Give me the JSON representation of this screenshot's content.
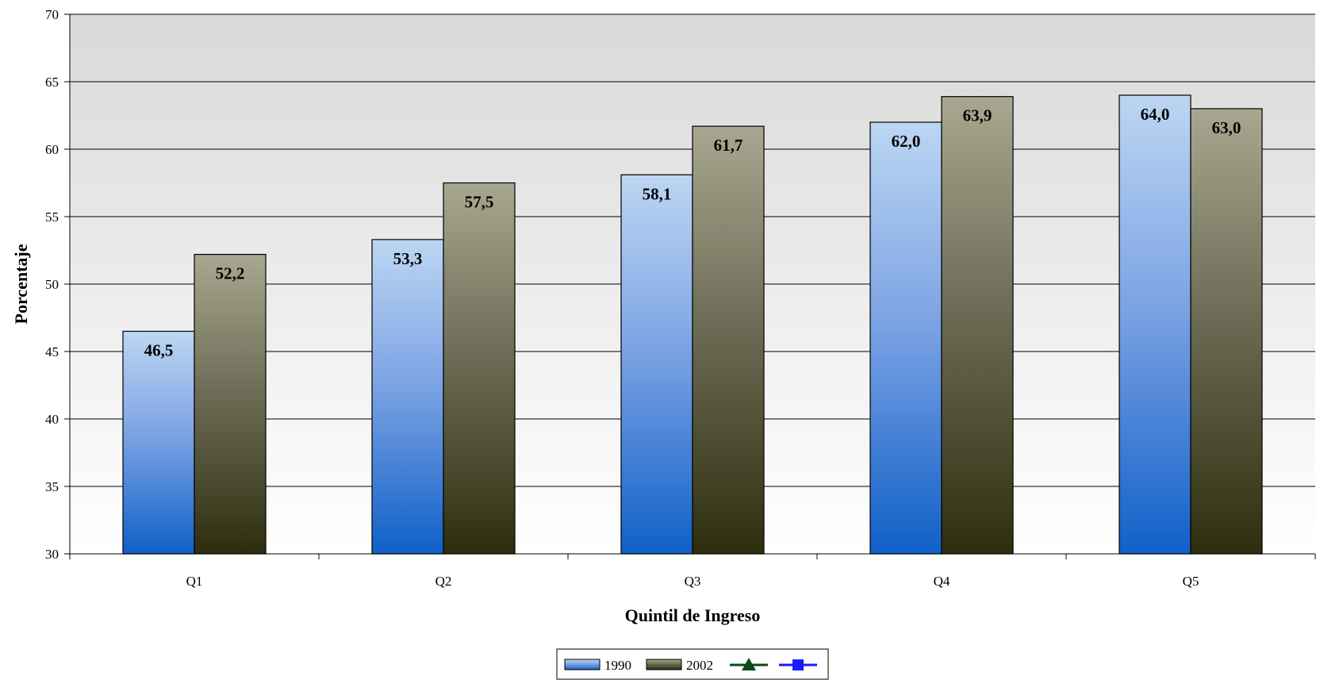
{
  "chart_data": {
    "type": "bar",
    "title": "",
    "xlabel": "Quintil de Ingreso",
    "ylabel": "Porcentaje",
    "categories": [
      "Q1",
      "Q2",
      "Q3",
      "Q4",
      "Q5"
    ],
    "ylim": [
      30,
      70
    ],
    "yticks": [
      30,
      35,
      40,
      45,
      50,
      55,
      60,
      65,
      70
    ],
    "grid": true,
    "legend_position": "bottom-center",
    "series": [
      {
        "name": "1990",
        "values": [
          46.5,
          53.3,
          58.1,
          62.0,
          64.0
        ],
        "labels": [
          "46,5",
          "53,3",
          "58,1",
          "62,0",
          "64,0"
        ],
        "color_top": "#bcd6f2",
        "color_bottom": "#1060c8"
      },
      {
        "name": "2002",
        "values": [
          52.2,
          57.5,
          61.7,
          63.9,
          63.0
        ],
        "labels": [
          "52,2",
          "57,5",
          "61,7",
          "63,9",
          "63,0"
        ],
        "color_top": "#a8a890",
        "color_bottom": "#2e2e0e"
      }
    ],
    "legend_extra": [
      {
        "marker": "triangle",
        "color": "#0a4a1a"
      },
      {
        "marker": "square",
        "color": "#1a1aff"
      }
    ]
  }
}
